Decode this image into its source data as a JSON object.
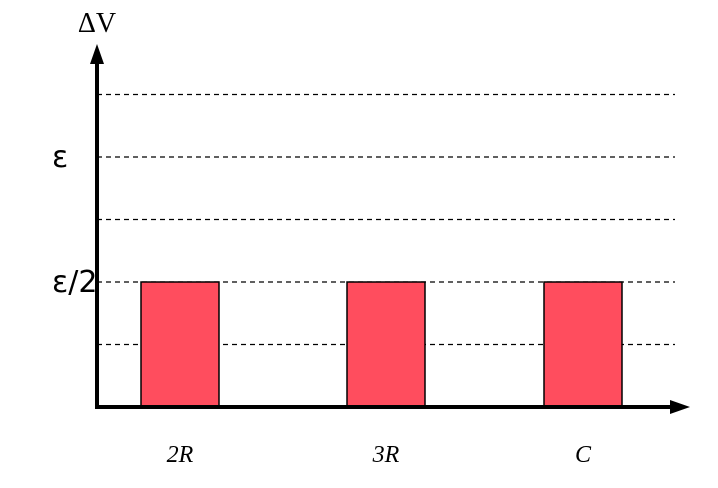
{
  "chart_data": {
    "type": "bar",
    "title": "",
    "ylabel": "ΔV",
    "xlabel": "",
    "categories": [
      "2R",
      "3R",
      "C"
    ],
    "values": [
      0.5,
      0.5,
      0.5
    ],
    "ylim": [
      0,
      1.25
    ],
    "gridlines": [
      0.25,
      0.5,
      0.75,
      1.0,
      1.25
    ],
    "y_ticks": [
      {
        "value": 1.0,
        "label": "ε"
      },
      {
        "value": 0.5,
        "label": "ε/2"
      }
    ],
    "grid": true,
    "grid_style": "dashed",
    "bar_color": "#ff4d5e",
    "bar_edge_color": "#000000"
  }
}
